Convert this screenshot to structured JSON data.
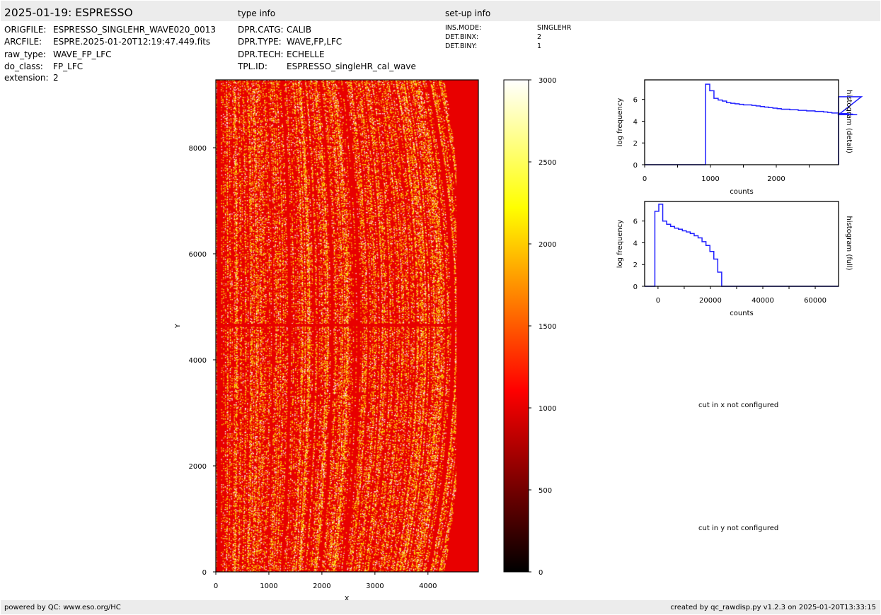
{
  "header": {
    "title": "2025-01-19: ESPRESSO",
    "type_info_heading": "type info",
    "setup_info_heading": "set-up info"
  },
  "file_info": [
    {
      "label": "ORIGFILE:",
      "value": "ESPRESSO_SINGLEHR_WAVE020_0013"
    },
    {
      "label": "ARCFILE:",
      "value": "ESPRE.2025-01-20T12:19:47.449.fits"
    },
    {
      "label": "raw_type:",
      "value": "WAVE_FP_LFC"
    },
    {
      "label": "do_class:",
      "value": "FP_LFC"
    },
    {
      "label": "extension:",
      "value": "2"
    }
  ],
  "type_info": [
    {
      "label": "DPR.CATG:",
      "value": "CALIB"
    },
    {
      "label": "DPR.TYPE:",
      "value": "WAVE,FP,LFC"
    },
    {
      "label": "DPR.TECH:",
      "value": "ECHELLE"
    },
    {
      "label": "TPL.ID:",
      "value": "ESPRESSO_singleHR_cal_wave"
    }
  ],
  "setup_info": [
    {
      "label": "INS.MODE:",
      "value": "SINGLEHR"
    },
    {
      "label": "DET.BINX:",
      "value": "2"
    },
    {
      "label": "DET.BINY:",
      "value": "1"
    }
  ],
  "cuts": {
    "x": "cut in x not configured",
    "y": "cut in y not configured"
  },
  "footer": {
    "left": "powered by QC: www.eso.org/HC",
    "right": "created by qc_rawdisp.py v1.2.3 on 2025-01-20T13:33:15"
  },
  "chart_data": [
    {
      "type": "heatmap",
      "xlabel": "X",
      "ylabel": "Y",
      "xlim": [
        0,
        4950
      ],
      "ylim": [
        0,
        9280
      ],
      "xticks": [
        0,
        1000,
        2000,
        3000,
        4000
      ],
      "yticks": [
        0,
        2000,
        4000,
        6000,
        8000
      ],
      "colormap": "hot",
      "colorbar": {
        "range": [
          0,
          3000
        ],
        "ticks": [
          0,
          500,
          1000,
          1500,
          2000,
          2500,
          3000
        ]
      }
    },
    {
      "type": "histogram",
      "title": "histogram (detail)",
      "xlabel": "counts",
      "ylabel": "log frequency",
      "xlim": [
        0,
        2946
      ],
      "ylim": [
        0,
        7.8
      ],
      "xticks": [
        0,
        1000,
        2000
      ],
      "yticks": [
        0,
        2,
        4,
        6
      ],
      "color": "#2020ff",
      "bin_start": 925,
      "bin_width": 64,
      "values": [
        7.4,
        6.8,
        6.1,
        5.95,
        5.85,
        5.7,
        5.65,
        5.6,
        5.55,
        5.5,
        5.5,
        5.45,
        5.4,
        5.35,
        5.3,
        5.25,
        5.2,
        5.15,
        5.1,
        5.1,
        5.05,
        5.05,
        5.0,
        5.0,
        4.95,
        4.95,
        4.9,
        4.9,
        4.85,
        4.8,
        4.75,
        4.75,
        4.7,
        4.7,
        4.7,
        4.65,
        4.6,
        6.25
      ]
    },
    {
      "type": "histogram",
      "title": "histogram (full)",
      "xlabel": "counts",
      "ylabel": "log frequency",
      "xlim": [
        -5100,
        68900
      ],
      "ylim": [
        0,
        7.8
      ],
      "xticks": [
        0,
        20000,
        40000,
        60000
      ],
      "yticks": [
        0,
        2,
        4,
        6
      ],
      "color": "#2020ff",
      "bin_start": -1200,
      "bin_width": 1500,
      "values": [
        6.9,
        7.55,
        6.0,
        5.7,
        5.5,
        5.35,
        5.25,
        5.1,
        5.0,
        4.85,
        4.65,
        4.45,
        4.1,
        3.75,
        3.2,
        2.5,
        1.3
      ]
    }
  ]
}
